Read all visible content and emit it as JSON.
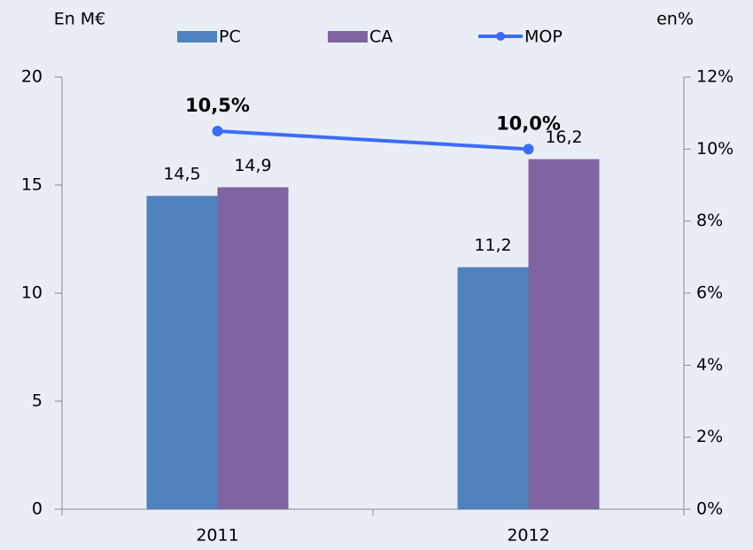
{
  "chart_data": {
    "type": "bar",
    "categories": [
      "2011",
      "2012"
    ],
    "y_label": "En M€",
    "y2_label": "en%",
    "series": [
      {
        "name": "PC",
        "type": "bar",
        "color": "#4f81bd",
        "values": [
          14.5,
          11.2
        ],
        "value_labels": [
          "14,5",
          "11,2"
        ]
      },
      {
        "name": "CA",
        "type": "bar",
        "color": "#8064a2",
        "values": [
          14.9,
          16.2
        ],
        "value_labels": [
          "14,9",
          "16,2"
        ]
      },
      {
        "name": "MOP",
        "type": "line",
        "axis": "y2",
        "color": "#3d6bff",
        "values": [
          10.5,
          10.0
        ],
        "value_labels": [
          "10,5%",
          "10,0%"
        ]
      }
    ],
    "ylim": [
      0,
      20
    ],
    "yticks": [
      0,
      5,
      10,
      15,
      20
    ],
    "y2lim": [
      0,
      12
    ],
    "y2ticks": [
      {
        "value": 0,
        "label": "0%"
      },
      {
        "value": 2,
        "label": "2%"
      },
      {
        "value": 4,
        "label": "4%"
      },
      {
        "value": 6,
        "label": "6%"
      },
      {
        "value": 8,
        "label": "8%"
      },
      {
        "value": 10,
        "label": "10%"
      },
      {
        "value": 12,
        "label": "12%"
      }
    ],
    "legend": "top"
  }
}
